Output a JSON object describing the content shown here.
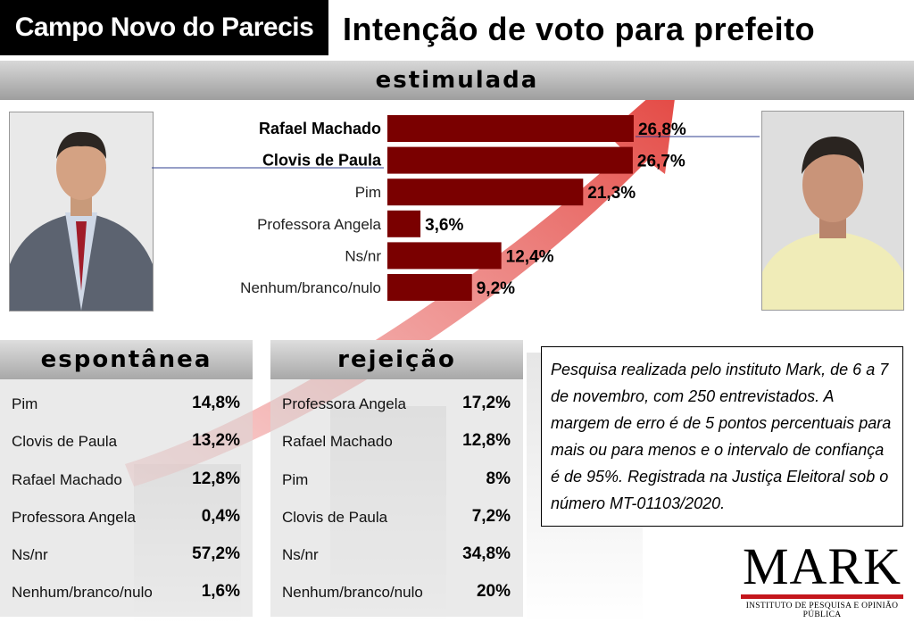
{
  "header": {
    "city": "Campo Novo do Parecis",
    "title": "Intenção de voto para prefeito"
  },
  "chart_data": {
    "type": "bar",
    "orientation": "horizontal",
    "title": "estimulada",
    "categories": [
      "Rafael Machado",
      "Clovis de Paula",
      "Pim",
      "Professora Angela",
      "Ns/nr",
      "Nenhum/branco/nulo"
    ],
    "values": [
      26.8,
      26.7,
      21.3,
      3.6,
      12.4,
      9.2
    ],
    "value_labels": [
      "26,8%",
      "26,7%",
      "21,3%",
      "3,6%",
      "12,4%",
      "9,2%"
    ],
    "highlighted": [
      "Rafael Machado",
      "Clovis de Paula"
    ],
    "bar_color": "#7a0000",
    "xlim": [
      0,
      27
    ]
  },
  "espontanea": {
    "title": "espontânea",
    "rows": [
      {
        "name": "Pim",
        "value": "14,8%"
      },
      {
        "name": "Clovis de Paula",
        "value": "13,2%"
      },
      {
        "name": "Rafael Machado",
        "value": "12,8%"
      },
      {
        "name": "Professora Angela",
        "value": "0,4%"
      },
      {
        "name": "Ns/nr",
        "value": "57,2%"
      },
      {
        "name": "Nenhum/branco/nulo",
        "value": "1,6%"
      }
    ]
  },
  "rejeicao": {
    "title": "rejeição",
    "rows": [
      {
        "name": "Professora Angela",
        "value": "17,2%"
      },
      {
        "name": "Rafael Machado",
        "value": "12,8%"
      },
      {
        "name": "Pim",
        "value": "8%"
      },
      {
        "name": "Clovis de Paula",
        "value": "7,2%"
      },
      {
        "name": "Ns/nr",
        "value": "34,8%"
      },
      {
        "name": "Nenhum/branco/nulo",
        "value": "20%"
      }
    ]
  },
  "note": {
    "text": "Pesquisa realizada pelo instituto Mark, de 6 a 7 de novembro, com 250 entrevistados. A margem de erro é de 5 pontos percentuais para mais ou para menos e o intervalo de confiança é de 95%. Registrada na Justiça Eleitoral sob o número MT-01103/2020."
  },
  "logo": {
    "name": "MARK",
    "subtitle": "INSTITUTO DE PESQUISA E OPINIÃO PÚBLICA",
    "accent_color": "#c4161c"
  },
  "icons": {
    "background": "rising-arrow-bar-chart-icon",
    "photo_left": "candidate-photo-icon",
    "photo_right": "candidate-photo-icon"
  }
}
